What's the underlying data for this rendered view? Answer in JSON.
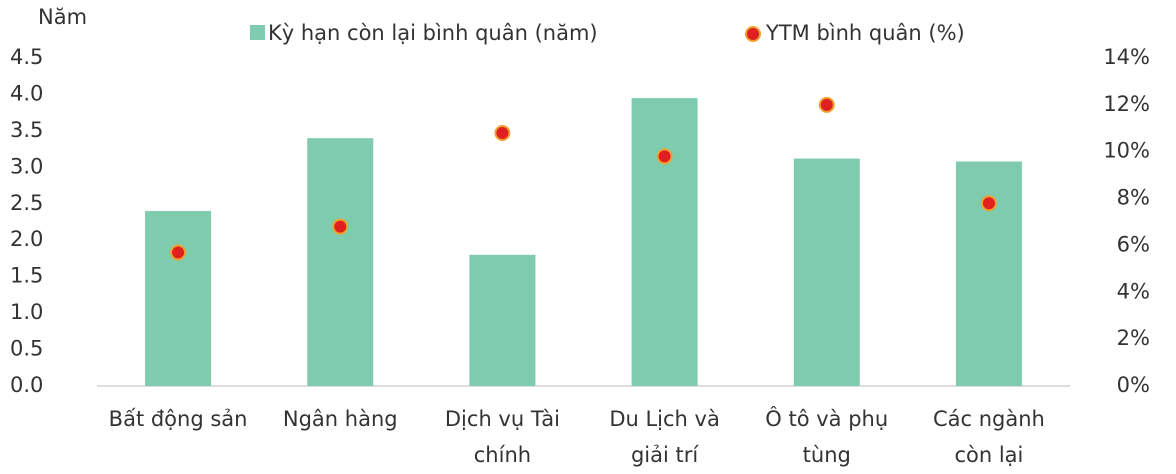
{
  "chart_data": {
    "type": "bar_dot",
    "y_label": "Năm",
    "categories": [
      [
        "Bất động sản"
      ],
      [
        "Ngân hàng"
      ],
      [
        "Dịch vụ Tài",
        "chính"
      ],
      [
        "Du Lịch và",
        "giải trí"
      ],
      [
        "Ô tô và phụ",
        "tùng"
      ],
      [
        "Các ngành",
        "còn lại"
      ]
    ],
    "series": [
      {
        "name": "Kỳ hạn còn lại bình quân (năm)",
        "color": "#7ecbae",
        "values": [
          2.4,
          3.4,
          1.8,
          3.95,
          3.12,
          3.08
        ]
      },
      {
        "name": "YTM bình quân (%)",
        "color": "#e02020",
        "axis": "y2",
        "values": [
          5.7,
          6.8,
          10.8,
          9.8,
          12.0,
          7.8
        ]
      }
    ],
    "ylim": [
      0,
      4.5
    ],
    "yticks": [
      {
        "value": 0,
        "label": "0.0"
      },
      {
        "value": 0.5,
        "label": "0.5"
      },
      {
        "value": 1,
        "label": "1.0"
      },
      {
        "value": 1.5,
        "label": "1.5"
      },
      {
        "value": 2,
        "label": "2.0"
      },
      {
        "value": 2.5,
        "label": "2.5"
      },
      {
        "value": 3,
        "label": "3.0"
      },
      {
        "value": 3.5,
        "label": "3.5"
      },
      {
        "value": 4,
        "label": "4.0"
      },
      {
        "value": 4.5,
        "label": "4.5"
      }
    ],
    "y2lim": [
      0,
      14
    ],
    "y2ticks": [
      {
        "value": 0,
        "label": "0%"
      },
      {
        "value": 2,
        "label": "2%"
      },
      {
        "value": 4,
        "label": "4%"
      },
      {
        "value": 6,
        "label": "6%"
      },
      {
        "value": 8,
        "label": "8%"
      },
      {
        "value": 10,
        "label": "10%"
      },
      {
        "value": 12,
        "label": "12%"
      },
      {
        "value": 14,
        "label": "14%"
      }
    ]
  }
}
